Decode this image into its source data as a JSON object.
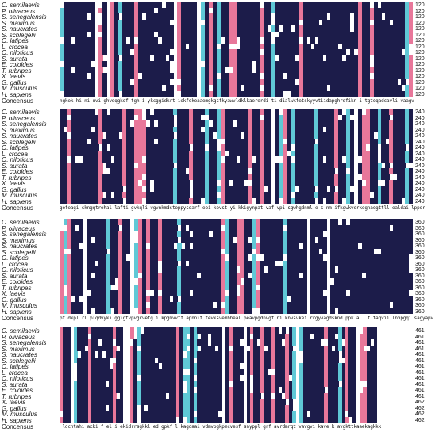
{
  "species": [
    "C. semilaevis",
    "P. olivaceus",
    "S. senegalensis",
    "S. maximus",
    "S. naucrates",
    "S. schlegelii",
    "O. latipes",
    "L. crocea",
    "O. niloticus",
    "S. aurata",
    "E. coioides",
    "T. rubripes",
    "X. laevis",
    "G. gallus",
    "M. musculus",
    "H. sapiens"
  ],
  "consensus_label": "Concensus",
  "blocks": [
    {
      "end_numbers": [
        "120",
        "120",
        "120",
        "120",
        "120",
        "120",
        "120",
        "120",
        "120",
        "120",
        "120",
        "120",
        "120",
        "120",
        "120",
        "120"
      ],
      "consensus": "ngkek hi ni uvi ghvdqgksf tgh i ykcggidkrt iekfekeaaemgkgsfkyawvldklkaererdi ti dialwkfetskyyvtiidapghrdfikn i tgtsqadcavli vaagv"
    },
    {
      "end_numbers": [
        "240",
        "240",
        "240",
        "240",
        "240",
        "240",
        "240",
        "240",
        "240",
        "240",
        "240",
        "240",
        "240",
        "240",
        "240",
        "240"
      ],
      "consensus": "gefeagi skngqtrehal lafti gvkqli vgvnkmdsteppysqarf eei kevst yi kkigynpat vaf vpi sgwhgdnml e s nm ifkgwkverkegnasgttll ealdai lppqr"
    },
    {
      "end_numbers": [
        "360",
        "360",
        "360",
        "360",
        "360",
        "360",
        "360",
        "360",
        "360",
        "360",
        "360",
        "360",
        "360",
        "360",
        "360",
        "360"
      ],
      "consensus": "pt dkpl rl plqdvyki ggigtvpvgrvetg i kpgmvvtf apnnit tevksvemhheal peavpgdnvgf ni knvsvkei rrgyvagdsknd ppk a   f taqvii lnhpgqi sagyapv"
    },
    {
      "end_numbers": [
        "461",
        "461",
        "461",
        "461",
        "461",
        "461",
        "461",
        "461",
        "461",
        "461",
        "461",
        "461",
        "462",
        "462",
        "462",
        "462"
      ],
      "consensus": " ldchtahi acki f el i ekidrrsgkkl ed gpkf l kagdaai vdmvpgkpmcvesf snyppl grf avrdmrqt vavgvi kave k avgkttkaaekagkkk"
    }
  ],
  "colors": {
    "conserved_full": "#1c1c4a",
    "conserved_high": "#e8779a",
    "conserved_mid": "#5fc8d6",
    "background": "#ffffff"
  }
}
